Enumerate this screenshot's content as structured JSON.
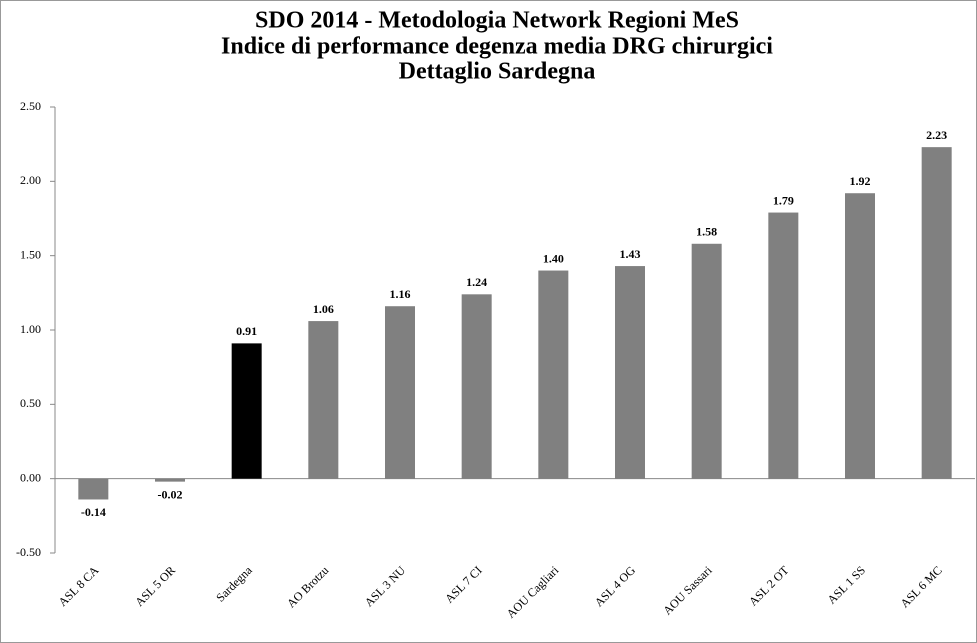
{
  "chart_data": {
    "type": "bar",
    "title": [
      "SDO 2014 - Metodologia Network Regioni MeS",
      "Indice di performance degenza media DRG chirurgici",
      "Dettaglio Sardegna"
    ],
    "categories": [
      "ASL 8 CA",
      "ASL 5 OR",
      "Sardegna",
      "AO Brotzu",
      "ASL 3 NU",
      "ASL 7 CI",
      "AOU Cagliari",
      "ASL 4 OG",
      "AOU Sassari",
      "ASL 2 OT",
      "ASL 1 SS",
      "ASL 6 MC"
    ],
    "values": [
      -0.14,
      -0.02,
      0.91,
      1.06,
      1.16,
      1.24,
      1.4,
      1.43,
      1.58,
      1.79,
      1.92,
      2.23
    ],
    "value_labels": [
      "-0.14",
      "-0.02",
      "0.91",
      "1.06",
      "1.16",
      "1.24",
      "1.40",
      "1.43",
      "1.58",
      "1.79",
      "1.92",
      "2.23"
    ],
    "colors": [
      "#808080",
      "#808080",
      "#000000",
      "#808080",
      "#808080",
      "#808080",
      "#808080",
      "#808080",
      "#808080",
      "#808080",
      "#808080",
      "#808080"
    ],
    "ylim": [
      -0.5,
      2.5
    ],
    "yticks": [
      {
        "value": -0.5,
        "label": "-0.50"
      },
      {
        "value": 0,
        "label": "0.00"
      },
      {
        "value": 0.5,
        "label": "0.50"
      },
      {
        "value": 1,
        "label": "1.00"
      },
      {
        "value": 1.5,
        "label": "1.50"
      },
      {
        "value": 2,
        "label": "2.00"
      },
      {
        "value": 2.5,
        "label": "2.50"
      }
    ],
    "grid": false
  }
}
